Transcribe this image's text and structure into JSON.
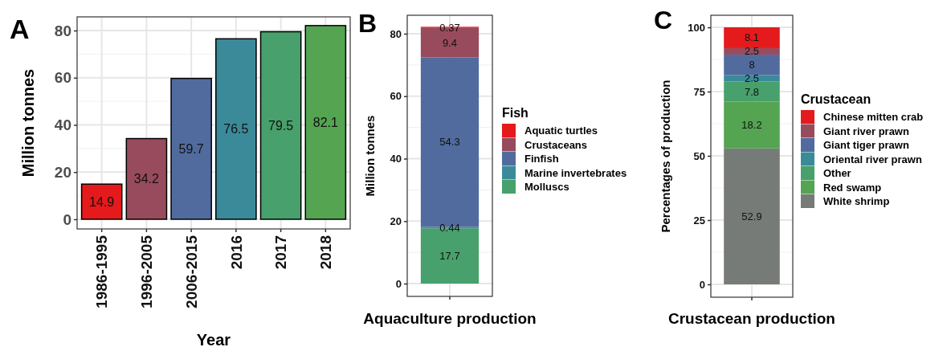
{
  "chart_data": [
    {
      "type": "bar",
      "title": "A",
      "xlabel": "Year",
      "ylabel": "Million tonnes",
      "categories": [
        "1986-1995",
        "1996-2005",
        "2006-2015",
        "2016",
        "2017",
        "2018"
      ],
      "values": [
        14.9,
        34.2,
        59.7,
        76.5,
        79.5,
        82.1
      ],
      "colors": [
        "#e41a1c",
        "#984b5d",
        "#516b9e",
        "#3b8a9a",
        "#48a06c",
        "#54a452"
      ],
      "ylim": [
        -4.1,
        85.8
      ],
      "yticks": [
        0,
        20,
        40,
        60,
        80
      ],
      "grid": true,
      "data_labels": true
    },
    {
      "type": "bar",
      "title": "B",
      "xlabel": "Aquaculture production",
      "ylabel": "Million tonnes",
      "legend_title": "Fish",
      "categories": [
        null
      ],
      "stacked": true,
      "series": [
        {
          "name": "Molluscs",
          "color": "#48a06c",
          "values": [
            17.7
          ]
        },
        {
          "name": "Marine invertebrates",
          "color": "#3b8a9a",
          "values": [
            0.44
          ]
        },
        {
          "name": "Finfish",
          "color": "#516b9e",
          "values": [
            54.3
          ]
        },
        {
          "name": "Crustaceans",
          "color": "#984b5d",
          "values": [
            9.4
          ]
        },
        {
          "name": "Aquatic turtles",
          "color": "#e41a1c",
          "values": [
            0.37
          ]
        }
      ],
      "ylim": [
        -4.1,
        85.9
      ],
      "yticks": [
        0,
        20,
        40,
        60,
        80
      ],
      "grid": true,
      "data_labels": true,
      "legend": "right"
    },
    {
      "type": "bar",
      "title": "C",
      "xlabel": "Crustacean production",
      "ylabel": "Percentages of production",
      "legend_title": "Crustacean",
      "categories": [
        null
      ],
      "stacked": true,
      "series": [
        {
          "name": "White shrimp",
          "color": "#777b78",
          "values": [
            52.9
          ]
        },
        {
          "name": "Red swamp",
          "color": "#54a452",
          "values": [
            18.2
          ]
        },
        {
          "name": "Other",
          "color": "#48a06c",
          "values": [
            7.8
          ]
        },
        {
          "name": "Oriental river prawn",
          "color": "#3b8a9a",
          "values": [
            2.5
          ]
        },
        {
          "name": "Giant tiger prawn",
          "color": "#516b9e",
          "values": [
            8
          ]
        },
        {
          "name": "Giant river prawn",
          "color": "#984b5d",
          "values": [
            2.5
          ]
        },
        {
          "name": "Chinese mitten crab",
          "color": "#e41a1c",
          "values": [
            8.1
          ]
        }
      ],
      "ylim": [
        -5,
        104.7
      ],
      "yticks": [
        0,
        25,
        50,
        75,
        100
      ],
      "grid": true,
      "data_labels": true,
      "legend": "right"
    }
  ]
}
